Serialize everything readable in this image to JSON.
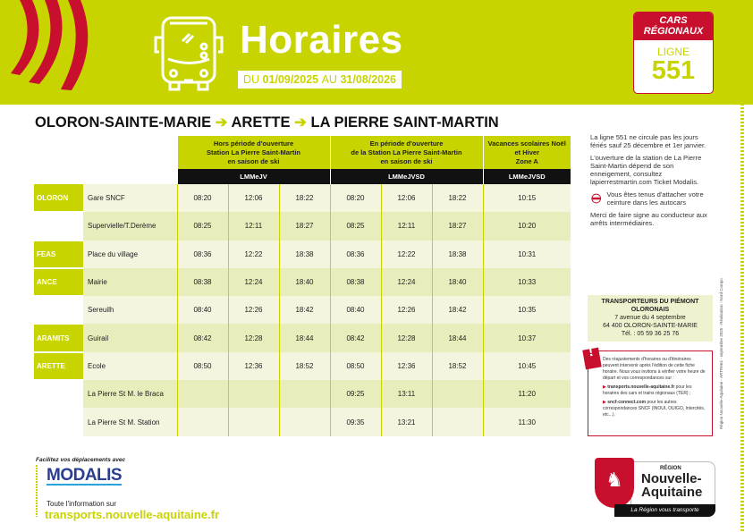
{
  "header": {
    "title": "Horaires",
    "dates_prefix": "DU",
    "date_from": "01/09/2025",
    "dates_mid": "AU",
    "date_to": "31/08/2026",
    "badge_top": "CARS RÉGIONAUX",
    "badge_label": "LIGNE",
    "line_number": "551",
    "accent_color": "#c8d400",
    "brand_red": "#c8102e"
  },
  "route": {
    "stops": [
      "OLORON-SAINTE-MARIE",
      "ARETTE",
      "LA PIERRE SAINT-MARTIN"
    ]
  },
  "table": {
    "groups": [
      {
        "title": [
          "Hors période d'ouverture",
          "Station La Pierre Saint-Martin",
          "en saison de ski"
        ],
        "days": "LMMeJV"
      },
      {
        "title": [
          "En période d'ouverture",
          "de la Station La Pierre Saint-Martin",
          "en saison de ski"
        ],
        "days": "LMMeJVSD"
      },
      {
        "title": [
          "Vacances scolaires Noël",
          "et Hiver",
          "Zone A"
        ],
        "days": "LMMeJVSD"
      }
    ],
    "rows": [
      {
        "commune": "OLORON",
        "stop": "Gare SNCF",
        "times": [
          "08:20",
          "12:06",
          "18:22",
          "08:20",
          "12:06",
          "18:22",
          "10:15"
        ]
      },
      {
        "commune": "",
        "stop": "Supervielle/T.Derème",
        "times": [
          "08:25",
          "12:11",
          "18:27",
          "08:25",
          "12:11",
          "18:27",
          "10:20"
        ]
      },
      {
        "commune": "FEAS",
        "stop": "Place du village",
        "times": [
          "08:36",
          "12:22",
          "18:38",
          "08:36",
          "12:22",
          "18:38",
          "10:31"
        ]
      },
      {
        "commune": "ANCE",
        "stop": "Mairie",
        "times": [
          "08:38",
          "12:24",
          "18:40",
          "08:38",
          "12:24",
          "18:40",
          "10:33"
        ]
      },
      {
        "commune": "",
        "stop": "Sereuilh",
        "times": [
          "08:40",
          "12:26",
          "18:42",
          "08:40",
          "12:26",
          "18:42",
          "10:35"
        ]
      },
      {
        "commune": "ARAMITS",
        "stop": "Guirail",
        "times": [
          "08:42",
          "12:28",
          "18:44",
          "08:42",
          "12:28",
          "18:44",
          "10:37"
        ]
      },
      {
        "commune": "ARETTE",
        "stop": "Ecole",
        "times": [
          "08:50",
          "12:36",
          "18:52",
          "08:50",
          "12:36",
          "18:52",
          "10:45"
        ]
      },
      {
        "commune": "",
        "stop": "La Pierre St M. le Braca",
        "times": [
          "",
          "",
          "",
          "09:25",
          "13:11",
          "",
          "11:20"
        ]
      },
      {
        "commune": "",
        "stop": "La Pierre St M. Station",
        "times": [
          "",
          "",
          "",
          "09:35",
          "13:21",
          "",
          "11:30"
        ]
      }
    ]
  },
  "info": {
    "p1": "La ligne 551 ne circule pas les jours fériés sauf 25 décembre et 1er janvier.",
    "p2": "L'ouverture de la station de La Pierre Saint-Martin dépend de son enneigement, consultez lapierrestmartin.com Ticket Modalis.",
    "belt": "Vous êtes tenus d'attacher votre ceinture dans les autocars",
    "p3": "Merci de faire signe au conducteur aux arrêts intermédiaires."
  },
  "operator": {
    "name": "TRANSPORTEURS DU PIÉMONT OLORONAIS",
    "address": "7 avenue du 4 septembre",
    "city": "64 400 OLORON-SAINTE-MARIE",
    "phone": "Tél. : 05 59 36 25 76"
  },
  "warning": {
    "text": "Des réajustements d'horaires ou d'itinéraires peuvent intervenir après l'édition de cette fiche horaire. Nous vous invitons à vérifier votre heure de départ et vos correspondances sur :",
    "link1": "transports.nouvelle-aquitaine.fr",
    "link1_desc": "pour les horaires des cars et trains régionaux (TER) ;",
    "link2": "sncf-connect.com",
    "link2_desc": "pour les autres correspondances SNCF (INOUI, OUIGO, Intercités, etc...)."
  },
  "footer": {
    "facilitez": "Facilitez vos déplacements avec",
    "modalis": "MODALIS",
    "toute_info": "Toute l'information sur",
    "url": "transports.nouvelle-aquitaine.fr",
    "credits": "Région Nouvelle-Aquitaine - ARTR964 - septembre 2025 - Réalisation : Nord Compo"
  },
  "region_logo": {
    "region": "RÉGION",
    "name": "Nouvelle-Aquitaine",
    "tagline": "La Région vous transporte"
  }
}
